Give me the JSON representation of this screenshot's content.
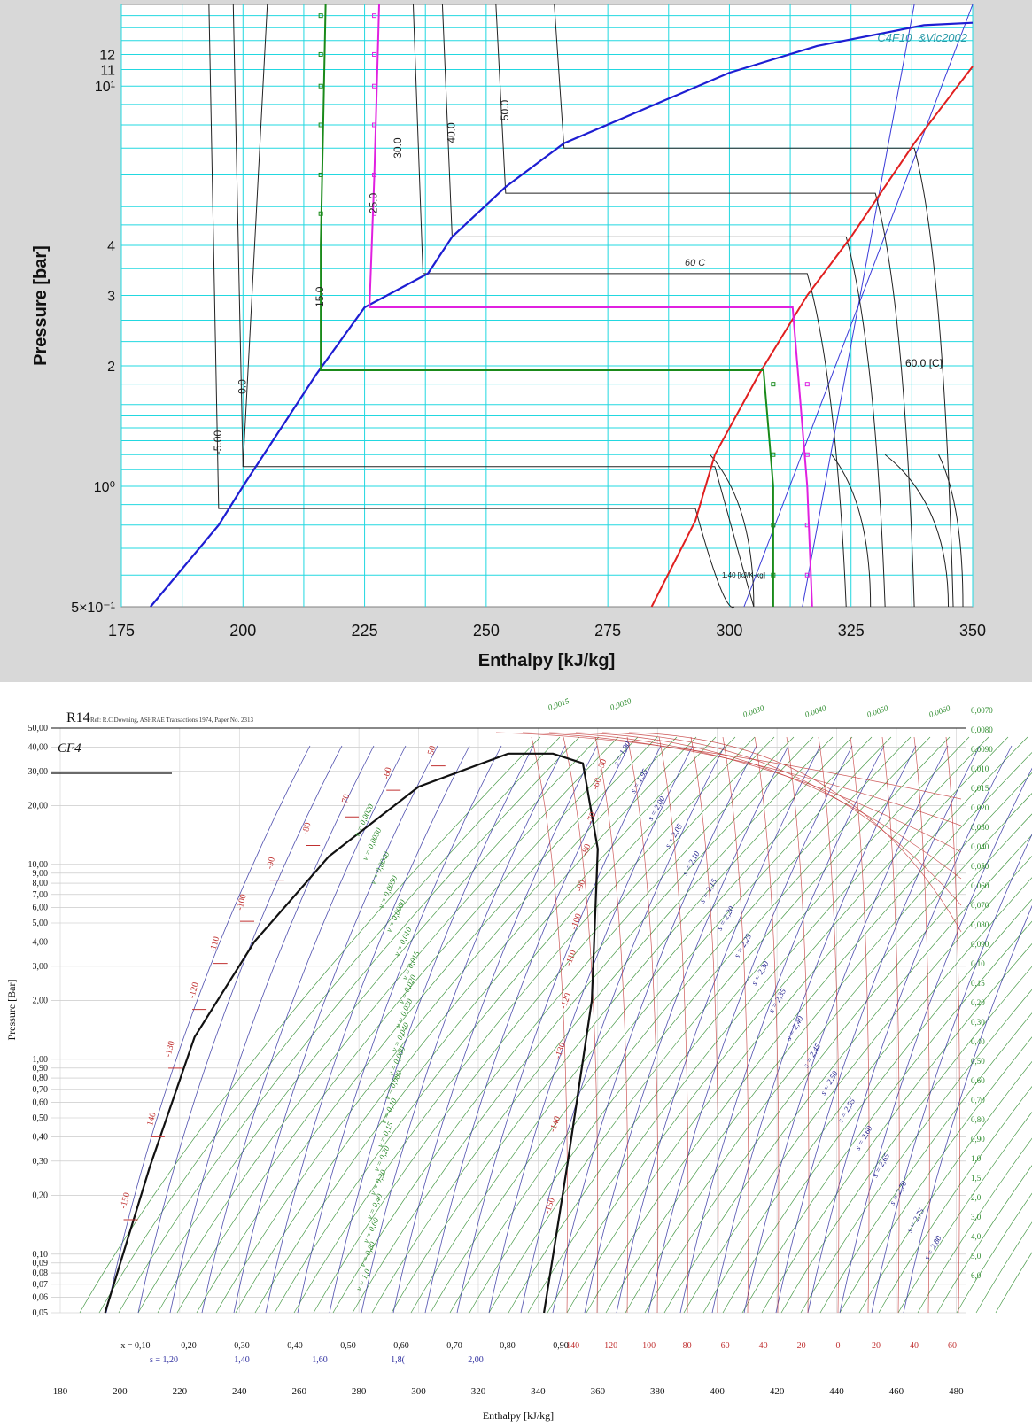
{
  "chart_data": [
    {
      "type": "line",
      "title": "C4F10_&Vic2002",
      "xlabel": "Enthalpy [kJ/kg]",
      "ylabel": "Pressure [bar]",
      "xlim": [
        175,
        350
      ],
      "ylim": [
        0.5,
        16
      ],
      "yscale": "log",
      "grid": true,
      "x_ticks": [
        "175",
        "200",
        "225",
        "250",
        "275",
        "300",
        "325",
        "350"
      ],
      "y_ticks": [
        {
          "label": "5×10⁻¹",
          "value": 0.5
        },
        {
          "label": "10⁰",
          "value": 1
        },
        {
          "label": "2",
          "value": 2
        },
        {
          "label": "3",
          "value": 3
        },
        {
          "label": "4",
          "value": 4
        },
        {
          "label": "10¹",
          "value": 10
        },
        {
          "label": "11",
          "value": 11
        },
        {
          "label": "12",
          "value": 12
        }
      ],
      "colors": {
        "saturated_liquid": "#1e1ed2",
        "saturated_vapor": "#e02020",
        "cycle_15": "#1a8a1a",
        "cycle_25": "#e020e0",
        "entropy": "#3a3ad8",
        "isotherm": "#222222",
        "grid": "#22d8e0"
      },
      "saturated_liquid": {
        "x": [
          181,
          195,
          200,
          215,
          225,
          238,
          243,
          254,
          266,
          300,
          318,
          340,
          350
        ],
        "y": [
          0.5,
          0.8,
          1.0,
          1.9,
          2.8,
          3.4,
          4.2,
          5.6,
          7.2,
          10.8,
          12.6,
          14.2,
          14.4
        ]
      },
      "saturated_vapor": {
        "x": [
          284,
          293,
          297,
          306,
          316,
          325,
          338,
          350
        ],
        "y": [
          0.5,
          0.82,
          1.2,
          1.9,
          3.0,
          4.2,
          7.2,
          11.2
        ]
      },
      "cycles": [
        {
          "name": "15.0",
          "color": "#1a8a1a",
          "x": [
            217,
            216,
            216,
            307,
            309,
            309
          ],
          "y": [
            16,
            4.0,
            1.95,
            1.95,
            1.0,
            0.5
          ]
        },
        {
          "name": "25.0",
          "color": "#e020e0",
          "x": [
            228,
            227,
            226,
            313,
            316,
            317
          ],
          "y": [
            16,
            6.0,
            2.8,
            2.8,
            1.0,
            0.5
          ]
        }
      ],
      "isotherm_labels": [
        "-5.00",
        "0.0",
        "15.0",
        "25.0",
        "30.0",
        "40.0",
        "50.0",
        "60 C",
        "60.0 [C]"
      ],
      "annotation": "1.40 [kJ/K-kg]"
    },
    {
      "type": "line",
      "title": "R14",
      "subtitle": "CF4",
      "source_note": "Ref: R.C.Downing, ASHRAE Transactions 1974, Paper No. 2313",
      "xlabel": "Enthalpy [kJ/kg]",
      "ylabel": "Pressure [Bar]",
      "xlim": [
        180,
        480
      ],
      "ylim": [
        0.05,
        50
      ],
      "yscale": "log",
      "grid": true,
      "x_ticks": [
        "180",
        "200",
        "220",
        "240",
        "260",
        "280",
        "300",
        "320",
        "340",
        "360",
        "380",
        "400",
        "420",
        "440",
        "460",
        "480"
      ],
      "y_ticks": [
        "50,00",
        "40,00",
        "30,00",
        "20,00",
        "10,00",
        "9,00",
        "8,00",
        "7,00",
        "6,00",
        "5,00",
        "4,00",
        "3,00",
        "2,00",
        "1,00",
        "0,90",
        "0,80",
        "0,70",
        "0,60",
        "0,50",
        "0,40",
        "0,30",
        "0,20",
        "0,10",
        "0,09",
        "0,08",
        "0,07",
        "0,06",
        "0,05"
      ],
      "colors": {
        "isotherm": "#c03030",
        "isochore": "#2a8a2a",
        "isentrope": "#3030a0",
        "saturation": "#111111"
      },
      "saturation_curve": {
        "x": [
          195,
          210,
          225,
          245,
          270,
          300,
          330,
          345,
          355,
          360,
          358,
          350,
          342
        ],
        "y": [
          0.05,
          0.28,
          1.3,
          4.0,
          11.0,
          25.0,
          37.0,
          37.0,
          33.0,
          12.0,
          2.0,
          0.3,
          0.05
        ]
      },
      "isotherm_labels": [
        "-150",
        "140",
        "-130",
        "-120",
        "-110",
        "-100",
        "-90",
        "-80",
        "-70",
        "-60",
        "50",
        "-50",
        "-60",
        "-70",
        "-80",
        "-90",
        "-100",
        "-110",
        "-120",
        "-130",
        "-140",
        "-150"
      ],
      "bottom_temperature_labels": [
        "-140",
        "-120",
        "-100",
        "-80",
        "-60",
        "-40",
        "-20",
        "0",
        "20",
        "40",
        "60"
      ],
      "quality_labels": [
        "x = 0,10",
        "0,20",
        "0,30",
        "0,40",
        "0,50",
        "0,60",
        "0,70",
        "0,80",
        "0,90"
      ],
      "liquid_entropy_labels": [
        "s = 1,20",
        "1,40",
        "1,60",
        "1,8(",
        "2,00"
      ],
      "vapor_entropy_labels": [
        "s = 1,90",
        "s = 1,95",
        "s = 2,00",
        "s = 2,05",
        "s = 2,10",
        "s = 2,15",
        "s = 2,20",
        "s = 2,25",
        "s = 2,30",
        "s = 2,35",
        "s = 2,40",
        "s = 2,45",
        "s = 2,50",
        "s = 2,55",
        "s = 2,60",
        "s = 2,65",
        "s = 2,70",
        "s = 2,75",
        "s = 2,80"
      ],
      "dome_volume_labels": [
        "v = 0,0020",
        "v = 0,0030",
        "v = 0,0040",
        "v = 0,0050",
        "v = 0,0060",
        "v = 0,010",
        "v = 0,015",
        "v = 0,020",
        "v = 0,030",
        "v = 0,040",
        "v = 0,060",
        "v = 0,080",
        "v = 0,10",
        "v = 0,15",
        "v = 0,20",
        "v = 0,30",
        "v = 0,40",
        "v = 0,60",
        "v = 0,80",
        "v = 1,0"
      ],
      "top_volume_labels": [
        "0,0015",
        "0,0020",
        "0,0030",
        "0,0040",
        "0,0050",
        "0,0060"
      ],
      "right_volume_labels": [
        "0,0070",
        "0,0080",
        "0,0090",
        "0,010",
        "0,015",
        "0,020",
        "0,030",
        "0,040",
        "0,050",
        "0,060",
        "0,070",
        "0,080",
        "0,090",
        "0,10",
        "0,15",
        "0,20",
        "0,30",
        "0,40",
        "0,50",
        "0,60",
        "0,70",
        "0,80",
        "0,90",
        "1,0",
        "1,5",
        "2,0",
        "3,0",
        "4,0",
        "5,0",
        "6,0"
      ]
    }
  ]
}
